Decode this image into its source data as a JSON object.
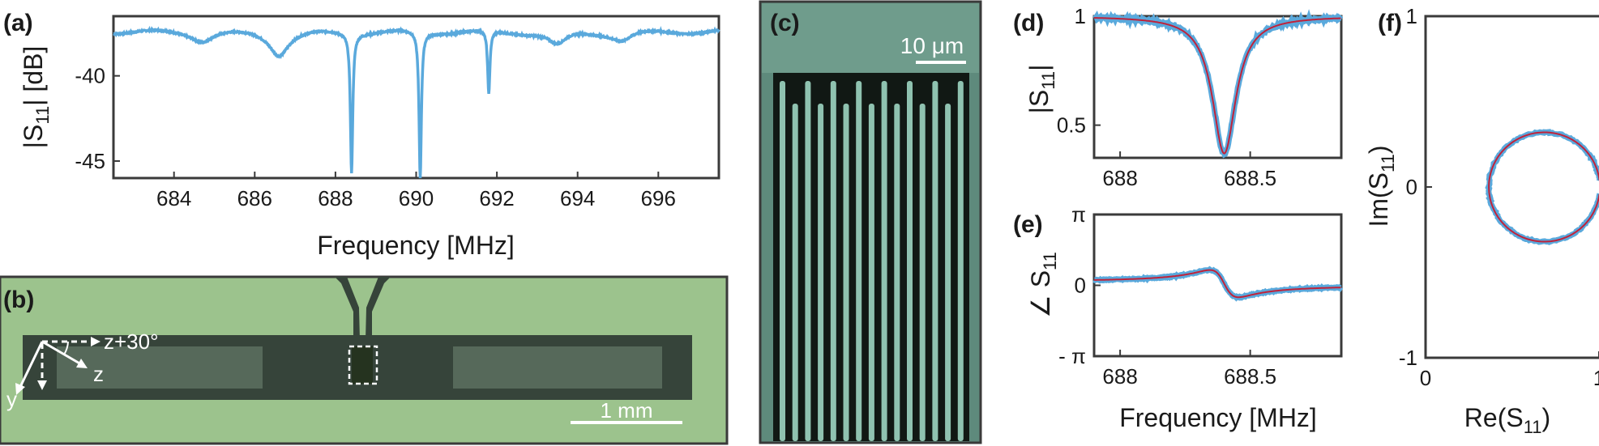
{
  "colors": {
    "data": "#5aa9dc",
    "fit": "#c0223a",
    "axis": "#3a3a3a",
    "device_bg": "#9cc38d",
    "device_dark": "#36443a",
    "micro_bg": "#5e8a7c",
    "micro_dark": "#111814"
  },
  "panels": {
    "a": {
      "label": "(a)",
      "ylabel_main": "|S",
      "ylabel_sub": "11",
      "ylabel_tail": "| [dB]",
      "xlabel": "Frequency [MHz]"
    },
    "b": {
      "label": "(b)",
      "axis_z30": "z+30°",
      "axis_z": "z",
      "axis_y": "y",
      "scale": "1 mm"
    },
    "c": {
      "label": "(c)",
      "scale": "10 μm"
    },
    "d": {
      "label": "(d)",
      "ylabel_main": "|S",
      "ylabel_sub": "11",
      "ylabel_tail": "|"
    },
    "e": {
      "label": "(e)",
      "ylabel_main": "∠ S",
      "ylabel_sub": "11",
      "xlabel": "Frequency [MHz]"
    },
    "f": {
      "label": "(f)",
      "ylabel_main": "Im(S",
      "ylabel_sub": "11",
      "ylabel_tail": ")",
      "xlabel_main": "Re(S",
      "xlabel_sub": "11",
      "xlabel_tail": ")"
    }
  },
  "chart_data": [
    {
      "panel": "a",
      "type": "line",
      "xlim": [
        682.5,
        697.5
      ],
      "ylim": [
        -46,
        -36.5
      ],
      "xticks": [
        684,
        686,
        688,
        690,
        692,
        694,
        696
      ],
      "xtick_labels": [
        "684",
        "686",
        "688",
        "690",
        "692",
        "694",
        "696"
      ],
      "yticks": [
        -40,
        -45
      ],
      "ytick_labels": [
        "-40",
        "-45"
      ],
      "baseline": -37.4,
      "resonances": [
        {
          "f0": 688.4,
          "depth": -45.6
        },
        {
          "f0": 690.1,
          "depth": -46.0
        },
        {
          "f0": 691.8,
          "depth": -41.1
        }
      ],
      "ripples": [
        {
          "f0": 684.7,
          "depth": -37.9
        },
        {
          "f0": 686.6,
          "depth": -38.7
        },
        {
          "f0": 693.5,
          "depth": -38.2
        },
        {
          "f0": 695.1,
          "depth": -37.9
        }
      ]
    },
    {
      "panel": "d",
      "type": "line",
      "xlim": [
        687.9,
        688.85
      ],
      "ylim": [
        0.35,
        1.0
      ],
      "xticks": [
        688,
        688.5
      ],
      "xtick_labels": [
        "688",
        "688.5"
      ],
      "yticks": [
        1,
        0.5
      ],
      "ytick_labels": [
        "1",
        "0.5"
      ],
      "f0": 688.4,
      "min": 0.37,
      "width": 0.055,
      "series": [
        {
          "name": "",
          "role": "data"
        },
        {
          "name": "",
          "role": "fit"
        }
      ]
    },
    {
      "panel": "e",
      "type": "line",
      "xlim": [
        687.9,
        688.85
      ],
      "ylim": [
        -3.1416,
        3.1416
      ],
      "xticks": [
        688,
        688.5
      ],
      "xtick_labels": [
        "688",
        "688.5"
      ],
      "yticks": [
        3.1416,
        0,
        -3.1416
      ],
      "ytick_labels": [
        "π",
        "0",
        "- π"
      ],
      "f0": 688.4,
      "amplitude": 0.75,
      "width": 0.055
    },
    {
      "panel": "f",
      "type": "scatter",
      "xlim": [
        0,
        1
      ],
      "ylim": [
        -1,
        1
      ],
      "xticks": [
        0,
        1
      ],
      "xtick_labels": [
        "0",
        "1"
      ],
      "yticks": [
        1,
        0,
        -1
      ],
      "ytick_labels": [
        "1",
        "0",
        "-1"
      ],
      "circle_center": [
        0.685,
        0.0
      ],
      "circle_radius": 0.32
    }
  ]
}
